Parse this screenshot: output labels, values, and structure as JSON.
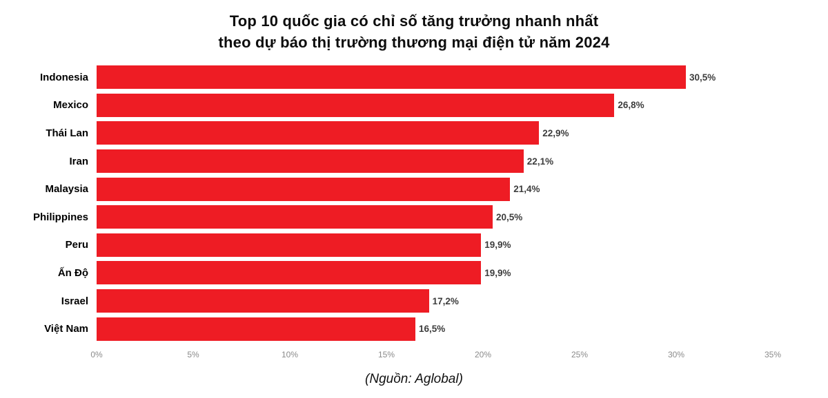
{
  "title": {
    "line1": "Top 10 quốc gia có chỉ số tăng trưởng nhanh nhất",
    "line2": "theo dự báo thị trường thương mại điện tử năm 2024"
  },
  "source": "(Nguồn: Aglobal)",
  "colors": {
    "bar": "#ee1c24",
    "value_label": "#3d3d3d",
    "tick_label": "#8a8a8a",
    "title": "#0d0d0d"
  },
  "chart_data": {
    "type": "bar",
    "orientation": "horizontal",
    "title": "Top 10 quốc gia có chỉ số tăng trưởng nhanh nhất theo dự báo thị trường thương mại điện tử năm 2024",
    "categories": [
      "Indonesia",
      "Mexico",
      "Thái Lan",
      "Iran",
      "Malaysia",
      "Philippines",
      "Peru",
      "Ấn Độ",
      "Israel",
      "Việt Nam"
    ],
    "values": [
      30.5,
      26.8,
      22.9,
      22.1,
      21.4,
      20.5,
      19.9,
      19.9,
      17.2,
      16.5
    ],
    "value_labels": [
      "30,5%",
      "26,8%",
      "22,9%",
      "22,1%",
      "21,4%",
      "20,5%",
      "19,9%",
      "19,9%",
      "17,2%",
      "16,5%"
    ],
    "xlabel": "",
    "ylabel": "",
    "xlim": [
      0,
      35
    ],
    "x_ticks": [
      0,
      5,
      10,
      15,
      20,
      25,
      30,
      35
    ],
    "x_tick_labels": [
      "0%",
      "5%",
      "10%",
      "15%",
      "20%",
      "25%",
      "30%",
      "35%"
    ],
    "grid": false,
    "legend": false,
    "annotations": "(Nguồn: Aglobal)"
  }
}
